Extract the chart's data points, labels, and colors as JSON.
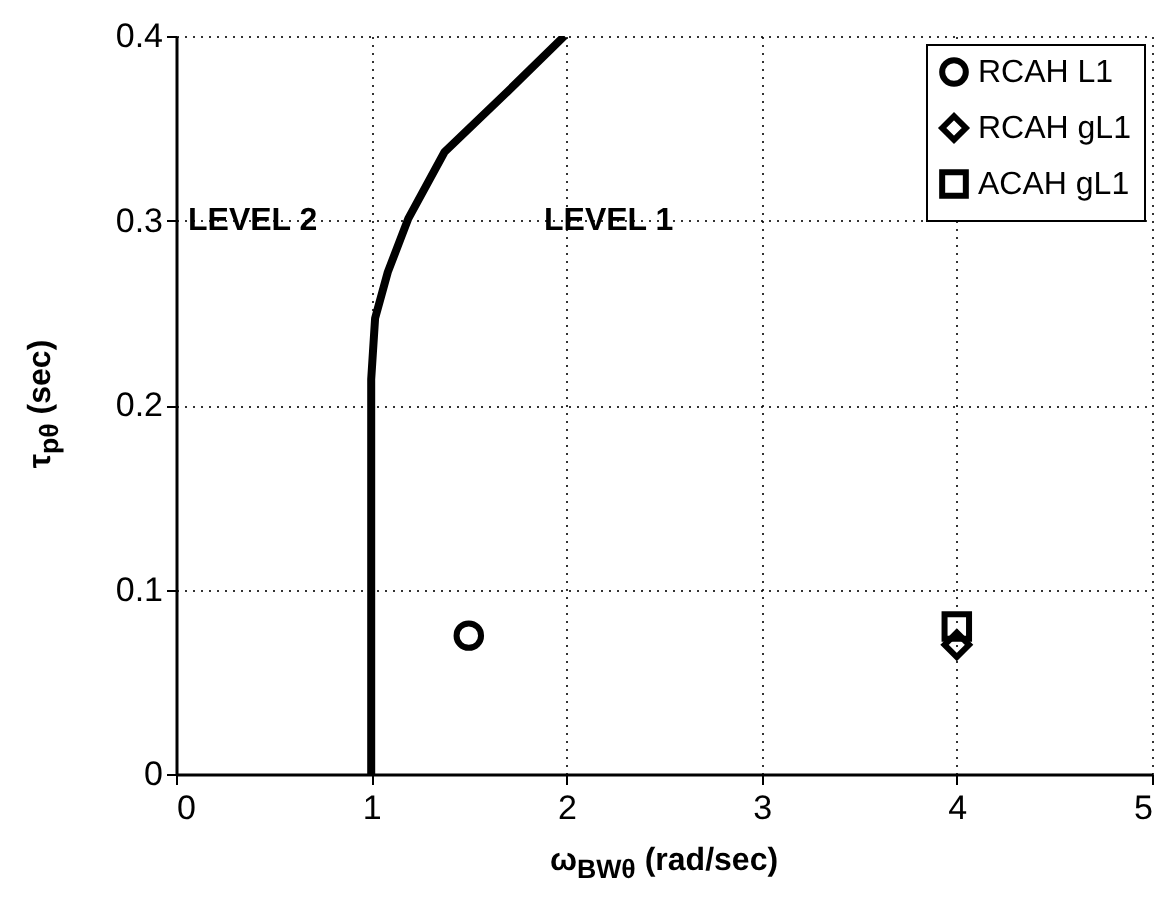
{
  "chart_data": {
    "type": "scatter",
    "xlabel": "ω$_{BWθ}$ (rad/sec)",
    "ylabel": "τ$_{pθ}$ (sec)",
    "xlim": [
      0,
      5
    ],
    "xticks": [
      0,
      1,
      2,
      3,
      4,
      5
    ],
    "ylim": [
      0,
      0.4
    ],
    "yticks": [
      0,
      0.1,
      0.2,
      0.3,
      0.4
    ],
    "grid": true,
    "legend": "top right",
    "annotations": [
      "LEVEL 2",
      "LEVEL 1"
    ],
    "series": [
      {
        "type": "line",
        "color": "#000000",
        "line_style": "solid",
        "x": [
          1,
          1,
          1.02,
          1.085,
          1.19,
          1.375,
          1.7,
          1.99
        ],
        "values": [
          0,
          0.214,
          0.247,
          0.272,
          0.301,
          0.337,
          0.37,
          0.4
        ]
      },
      {
        "name": "RCAH L1",
        "type": "scatter",
        "marker": "circle",
        "color": "#000000",
        "x": [
          1.5
        ],
        "values": [
          0.075
        ]
      },
      {
        "name": "RCAH gL1",
        "type": "scatter",
        "marker": "diamond",
        "color": "#000000",
        "x": [
          4
        ],
        "values": [
          0.07
        ]
      },
      {
        "name": "ACAH gL1",
        "type": "scatter",
        "marker": "square",
        "color": "#000000",
        "x": [
          4
        ],
        "values": [
          0.08
        ]
      }
    ]
  }
}
